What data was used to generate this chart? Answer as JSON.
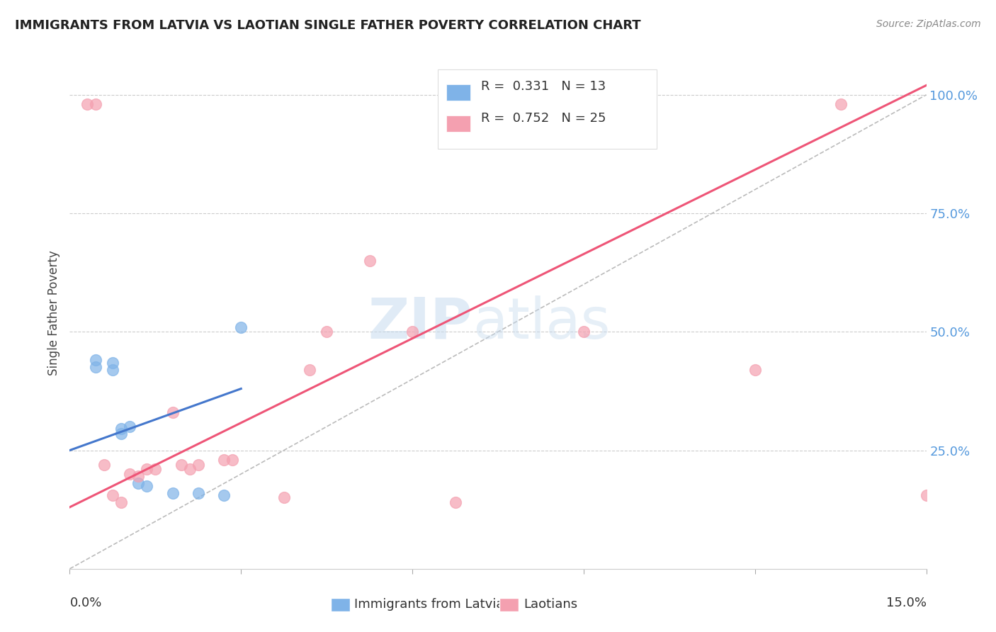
{
  "title": "IMMIGRANTS FROM LATVIA VS LAOTIAN SINGLE FATHER POVERTY CORRELATION CHART",
  "source": "Source: ZipAtlas.com",
  "ylabel": "Single Father Poverty",
  "legend_label1": "Immigrants from Latvia",
  "legend_label2": "Laotians",
  "R1": 0.331,
  "N1": 13,
  "R2": 0.752,
  "N2": 25,
  "blue_points": [
    [
      0.03,
      0.44
    ],
    [
      0.03,
      0.425
    ],
    [
      0.05,
      0.435
    ],
    [
      0.05,
      0.42
    ],
    [
      0.06,
      0.285
    ],
    [
      0.06,
      0.295
    ],
    [
      0.07,
      0.3
    ],
    [
      0.08,
      0.18
    ],
    [
      0.09,
      0.175
    ],
    [
      0.12,
      0.16
    ],
    [
      0.15,
      0.16
    ],
    [
      0.18,
      0.155
    ],
    [
      0.2,
      0.51
    ]
  ],
  "pink_points": [
    [
      0.02,
      0.98
    ],
    [
      0.03,
      0.98
    ],
    [
      0.04,
      0.22
    ],
    [
      0.05,
      0.155
    ],
    [
      0.06,
      0.14
    ],
    [
      0.07,
      0.2
    ],
    [
      0.08,
      0.195
    ],
    [
      0.09,
      0.21
    ],
    [
      0.1,
      0.21
    ],
    [
      0.12,
      0.33
    ],
    [
      0.13,
      0.22
    ],
    [
      0.14,
      0.21
    ],
    [
      0.15,
      0.22
    ],
    [
      0.18,
      0.23
    ],
    [
      0.19,
      0.23
    ],
    [
      0.25,
      0.15
    ],
    [
      0.28,
      0.42
    ],
    [
      0.3,
      0.5
    ],
    [
      0.35,
      0.65
    ],
    [
      0.4,
      0.5
    ],
    [
      0.45,
      0.14
    ],
    [
      0.6,
      0.5
    ],
    [
      0.8,
      0.42
    ],
    [
      0.9,
      0.98
    ],
    [
      1.0,
      0.155
    ]
  ],
  "blue_line_x": [
    0.0,
    0.2
  ],
  "blue_line_y": [
    0.25,
    0.38
  ],
  "pink_line_x": [
    0.0,
    1.0
  ],
  "pink_line_y": [
    0.13,
    1.02
  ],
  "ref_line_x": [
    0.0,
    15.0
  ],
  "ref_line_y": [
    0.0,
    1.0
  ],
  "blue_color": "#7FB3E8",
  "pink_color": "#F4A0B0",
  "blue_line_color": "#4477CC",
  "pink_line_color": "#EE5577",
  "ref_line_color": "#BBBBBB",
  "watermark_zip": "ZIP",
  "watermark_atlas": "atlas",
  "background_color": "#FFFFFF",
  "xlim": [
    0.0,
    15.0
  ],
  "ylim": [
    0.0,
    1.08
  ],
  "marker_size": 130
}
